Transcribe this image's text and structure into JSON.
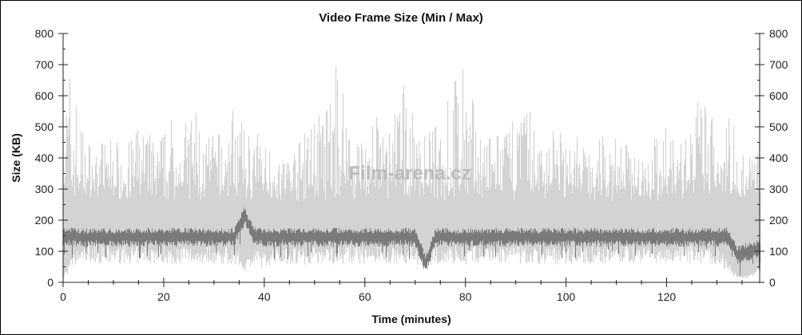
{
  "chart_data": {
    "type": "area",
    "title": "Video Frame Size (Min / Max)",
    "xlabel": "Time (minutes)",
    "ylabel": "Size (KB)",
    "xlim": [
      0,
      138.5
    ],
    "ylim": [
      0,
      800
    ],
    "xticks": [
      0,
      20,
      40,
      60,
      80,
      100,
      120
    ],
    "xtick_labels": [
      "0",
      "20",
      "40",
      "60",
      "80",
      "100",
      "120"
    ],
    "yticks": [
      0,
      100,
      200,
      300,
      400,
      500,
      600,
      700,
      800
    ],
    "ytick_labels": [
      "0",
      "100",
      "200",
      "300",
      "400",
      "500",
      "600",
      "700",
      "800"
    ],
    "right_axis": true,
    "grid": false,
    "watermark": "Film-arena.cz",
    "colors": {
      "max": "#d3d3d3",
      "min": "#7a7a7a"
    },
    "x": [
      0,
      2,
      4,
      6,
      8,
      10,
      12,
      14,
      16,
      18,
      20,
      22,
      24,
      26,
      28,
      30,
      32,
      34,
      36,
      38,
      40,
      42,
      44,
      46,
      48,
      50,
      52,
      54,
      56,
      58,
      60,
      62,
      64,
      66,
      68,
      70,
      72,
      74,
      76,
      78,
      80,
      82,
      84,
      86,
      88,
      90,
      92,
      94,
      96,
      98,
      100,
      102,
      104,
      106,
      108,
      110,
      112,
      114,
      116,
      118,
      120,
      122,
      124,
      126,
      128,
      130,
      132,
      134,
      136,
      138
    ],
    "series": [
      {
        "key": "max",
        "values": [
          650,
          700,
          460,
          420,
          450,
          460,
          430,
          470,
          520,
          440,
          470,
          540,
          500,
          570,
          450,
          480,
          470,
          600,
          480,
          480,
          470,
          400,
          380,
          420,
          480,
          560,
          520,
          700,
          640,
          500,
          480,
          540,
          480,
          560,
          650,
          500,
          470,
          500,
          560,
          700,
          680,
          540,
          450,
          480,
          470,
          560,
          600,
          460,
          520,
          500,
          450,
          470,
          430,
          450,
          480,
          460,
          440,
          420,
          480,
          460,
          500,
          430,
          470,
          580,
          560,
          590,
          640,
          420,
          400,
          450
        ]
      },
      {
        "key": "max_low",
        "values": [
          20,
          80,
          100,
          105,
          100,
          95,
          100,
          95,
          100,
          100,
          100,
          95,
          100,
          95,
          100,
          100,
          95,
          100,
          60,
          90,
          80,
          95,
          100,
          100,
          95,
          100,
          100,
          95,
          100,
          100,
          95,
          100,
          100,
          95,
          100,
          100,
          80,
          95,
          100,
          100,
          95,
          100,
          100,
          95,
          100,
          100,
          95,
          100,
          100,
          95,
          100,
          100,
          95,
          100,
          100,
          95,
          100,
          100,
          95,
          100,
          100,
          95,
          100,
          100,
          95,
          100,
          60,
          20,
          20,
          40
        ]
      },
      {
        "key": "min",
        "values": [
          150,
          148,
          145,
          147,
          146,
          145,
          147,
          146,
          148,
          147,
          146,
          148,
          150,
          147,
          146,
          147,
          146,
          148,
          215,
          150,
          146,
          145,
          147,
          146,
          148,
          147,
          146,
          149,
          147,
          146,
          148,
          147,
          146,
          147,
          148,
          146,
          60,
          147,
          148,
          146,
          147,
          146,
          148,
          147,
          146,
          147,
          148,
          146,
          147,
          146,
          147,
          148,
          146,
          147,
          146,
          147,
          148,
          146,
          147,
          146,
          148,
          147,
          146,
          147,
          148,
          147,
          150,
          90,
          100,
          110
        ]
      }
    ]
  }
}
